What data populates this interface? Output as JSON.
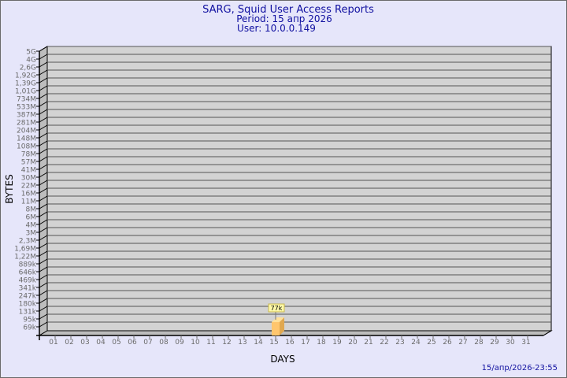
{
  "chart_data": {
    "type": "bar",
    "title": "SARG, Squid User Access Reports",
    "subtitle_period": "Period: 15 апр 2026",
    "subtitle_user": "User: 10.0.0.149",
    "xlabel": "DAYS",
    "ylabel": "BYTES",
    "footer": "15/апр/2026-23:55",
    "y_scale": "log",
    "y_tick_labels": [
      "5G",
      "4G",
      "2,6G",
      "1,92G",
      "1,39G",
      "1,01G",
      "734M",
      "533M",
      "387M",
      "281M",
      "204M",
      "148M",
      "108M",
      "78M",
      "57M",
      "41M",
      "30M",
      "22M",
      "16M",
      "11M",
      "8M",
      "6M",
      "4M",
      "3M",
      "2,3M",
      "1,69M",
      "1,22M",
      "889k",
      "646k",
      "469k",
      "341k",
      "247k",
      "180k",
      "131k",
      "95k",
      "69k"
    ],
    "categories": [
      "01",
      "02",
      "03",
      "04",
      "05",
      "06",
      "07",
      "08",
      "09",
      "10",
      "11",
      "12",
      "13",
      "14",
      "15",
      "16",
      "17",
      "18",
      "19",
      "20",
      "21",
      "22",
      "23",
      "24",
      "25",
      "26",
      "27",
      "28",
      "29",
      "30",
      "31"
    ],
    "values": [
      null,
      null,
      null,
      null,
      null,
      null,
      null,
      null,
      null,
      null,
      null,
      null,
      null,
      null,
      77000,
      null,
      null,
      null,
      null,
      null,
      null,
      null,
      null,
      null,
      null,
      null,
      null,
      null,
      null,
      null,
      null
    ],
    "data_labels": {
      "15": "77k"
    },
    "grid": true,
    "colors": {
      "background": "#e6e6fa",
      "plot": "#d3d3d3",
      "bar": "#ffc66e",
      "title": "#1010a0",
      "tick_text": "#6a6a6a"
    }
  }
}
